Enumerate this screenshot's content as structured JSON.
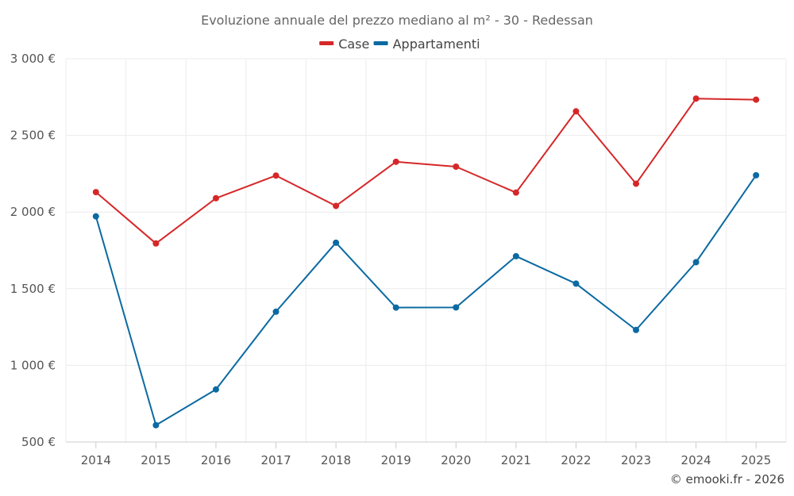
{
  "chart_data": {
    "type": "line",
    "title": "Evoluzione annuale del prezzo mediano al m² - 30 - Redessan",
    "x": [
      "2014",
      "2015",
      "2016",
      "2017",
      "2018",
      "2019",
      "2020",
      "2021",
      "2022",
      "2023",
      "2024",
      "2025"
    ],
    "series": [
      {
        "name": "Case",
        "color": "#d62728",
        "values": [
          2130,
          1795,
          2090,
          2238,
          2040,
          2328,
          2296,
          2127,
          2657,
          2185,
          2740,
          2733
        ]
      },
      {
        "name": "Appartamenti",
        "color": "#0b6aa2",
        "values": [
          1972,
          610,
          843,
          1350,
          1800,
          1377,
          1378,
          1712,
          1533,
          1231,
          1673,
          2240
        ]
      }
    ],
    "ylim": [
      500,
      3000
    ],
    "yticks": [
      500,
      1000,
      1500,
      2000,
      2500,
      3000
    ],
    "ytick_labels": [
      "500 €",
      "1 000 €",
      "1 500 €",
      "2 000 €",
      "2 500 €",
      "3 000 €"
    ],
    "xlabel": "",
    "ylabel": "",
    "grid": true,
    "legend": "top-center"
  },
  "credit": "© emooki.fr - 2026"
}
